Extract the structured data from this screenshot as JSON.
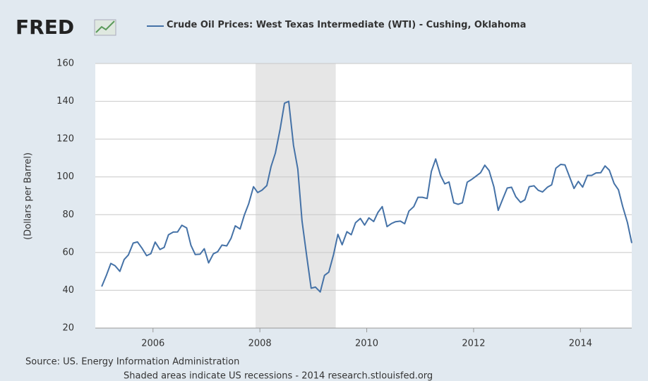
{
  "chart_data": {
    "type": "line",
    "logo": "FRED",
    "y_label": "(Dollars per Barrel)",
    "source": "Source: US. Energy Information Administration",
    "note": "Shaded areas indicate US recessions - 2014 research.stlouisfed.org",
    "xlim": [
      2004.92,
      2014.96
    ],
    "xticks": [
      2006,
      2008,
      2010,
      2012,
      2014
    ],
    "ylim": [
      20,
      160
    ],
    "yticks": [
      20,
      40,
      60,
      80,
      100,
      120,
      140,
      160
    ],
    "grid": true,
    "recessions": [
      {
        "start": 2007.92,
        "end": 2009.42,
        "color": "#e6e6e6"
      }
    ],
    "x": [
      2005.04,
      2005.13,
      2005.21,
      2005.29,
      2005.38,
      2005.46,
      2005.54,
      2005.63,
      2005.71,
      2005.79,
      2005.88,
      2005.96,
      2006.04,
      2006.13,
      2006.21,
      2006.29,
      2006.38,
      2006.46,
      2006.54,
      2006.63,
      2006.71,
      2006.79,
      2006.88,
      2006.96,
      2007.04,
      2007.13,
      2007.21,
      2007.29,
      2007.38,
      2007.46,
      2007.54,
      2007.63,
      2007.71,
      2007.79,
      2007.88,
      2007.96,
      2008.04,
      2008.13,
      2008.21,
      2008.29,
      2008.38,
      2008.46,
      2008.54,
      2008.63,
      2008.71,
      2008.79,
      2008.88,
      2008.96,
      2009.04,
      2009.13,
      2009.21,
      2009.29,
      2009.38,
      2009.46,
      2009.54,
      2009.63,
      2009.71,
      2009.79,
      2009.88,
      2009.96,
      2010.04,
      2010.13,
      2010.21,
      2010.29,
      2010.38,
      2010.46,
      2010.54,
      2010.63,
      2010.71,
      2010.79,
      2010.88,
      2010.96,
      2011.04,
      2011.13,
      2011.21,
      2011.29,
      2011.38,
      2011.46,
      2011.54,
      2011.63,
      2011.71,
      2011.79,
      2011.88,
      2011.96,
      2012.04,
      2012.13,
      2012.21,
      2012.29,
      2012.38,
      2012.46,
      2012.54,
      2012.63,
      2012.71,
      2012.79,
      2012.88,
      2012.96,
      2013.04,
      2013.13,
      2013.21,
      2013.29,
      2013.38,
      2013.46,
      2013.54,
      2013.63,
      2013.71,
      2013.79,
      2013.88,
      2013.96,
      2014.04,
      2014.13,
      2014.21,
      2014.29,
      2014.38,
      2014.46,
      2014.54,
      2014.63,
      2014.71,
      2014.79,
      2014.88,
      2014.96
    ],
    "series": [
      {
        "name": "Crude Oil Prices: West Texas Intermediate (WTI) - Cushing, Oklahoma",
        "color": "#4572a7",
        "values": [
          42,
          48.1,
          54.2,
          53,
          50,
          56.3,
          58.7,
          65,
          65.6,
          62.4,
          58.3,
          59.4,
          65.5,
          61.6,
          62.7,
          69.4,
          70.8,
          70.9,
          74.4,
          73,
          63.8,
          58.9,
          59.1,
          62,
          54.5,
          59.3,
          60.4,
          63.9,
          63.5,
          67.5,
          74.1,
          72.4,
          79.9,
          85.8,
          94.8,
          91.7,
          93,
          95.4,
          105.5,
          112.6,
          125.4,
          139,
          140,
          116.7,
          104.1,
          76.6,
          57.3,
          41.1,
          41.7,
          39.1,
          47.9,
          49.6,
          59,
          69.6,
          64.1,
          71,
          69.4,
          75.7,
          78,
          74.5,
          78.3,
          76.4,
          81.2,
          84.3,
          73.7,
          75.3,
          76.3,
          76.6,
          75.2,
          81.9,
          84.3,
          89.2,
          89.2,
          88.6,
          102.9,
          109.5,
          100.9,
          96.3,
          97.3,
          86.3,
          85.5,
          86.3,
          97.2,
          98.6,
          100.3,
          102.2,
          106.2,
          103.3,
          94.7,
          82.3,
          87.9,
          94.1,
          94.5,
          89.5,
          86.5,
          87.9,
          94.8,
          95.3,
          92.9,
          92,
          94.5,
          95.8,
          104.6,
          106.6,
          106.3,
          100.5,
          93.9,
          97.6,
          94.6,
          100.8,
          100.8,
          102.1,
          102.2,
          105.8,
          103.6,
          96.5,
          93.2,
          84.4,
          75.8,
          65
        ]
      }
    ]
  }
}
